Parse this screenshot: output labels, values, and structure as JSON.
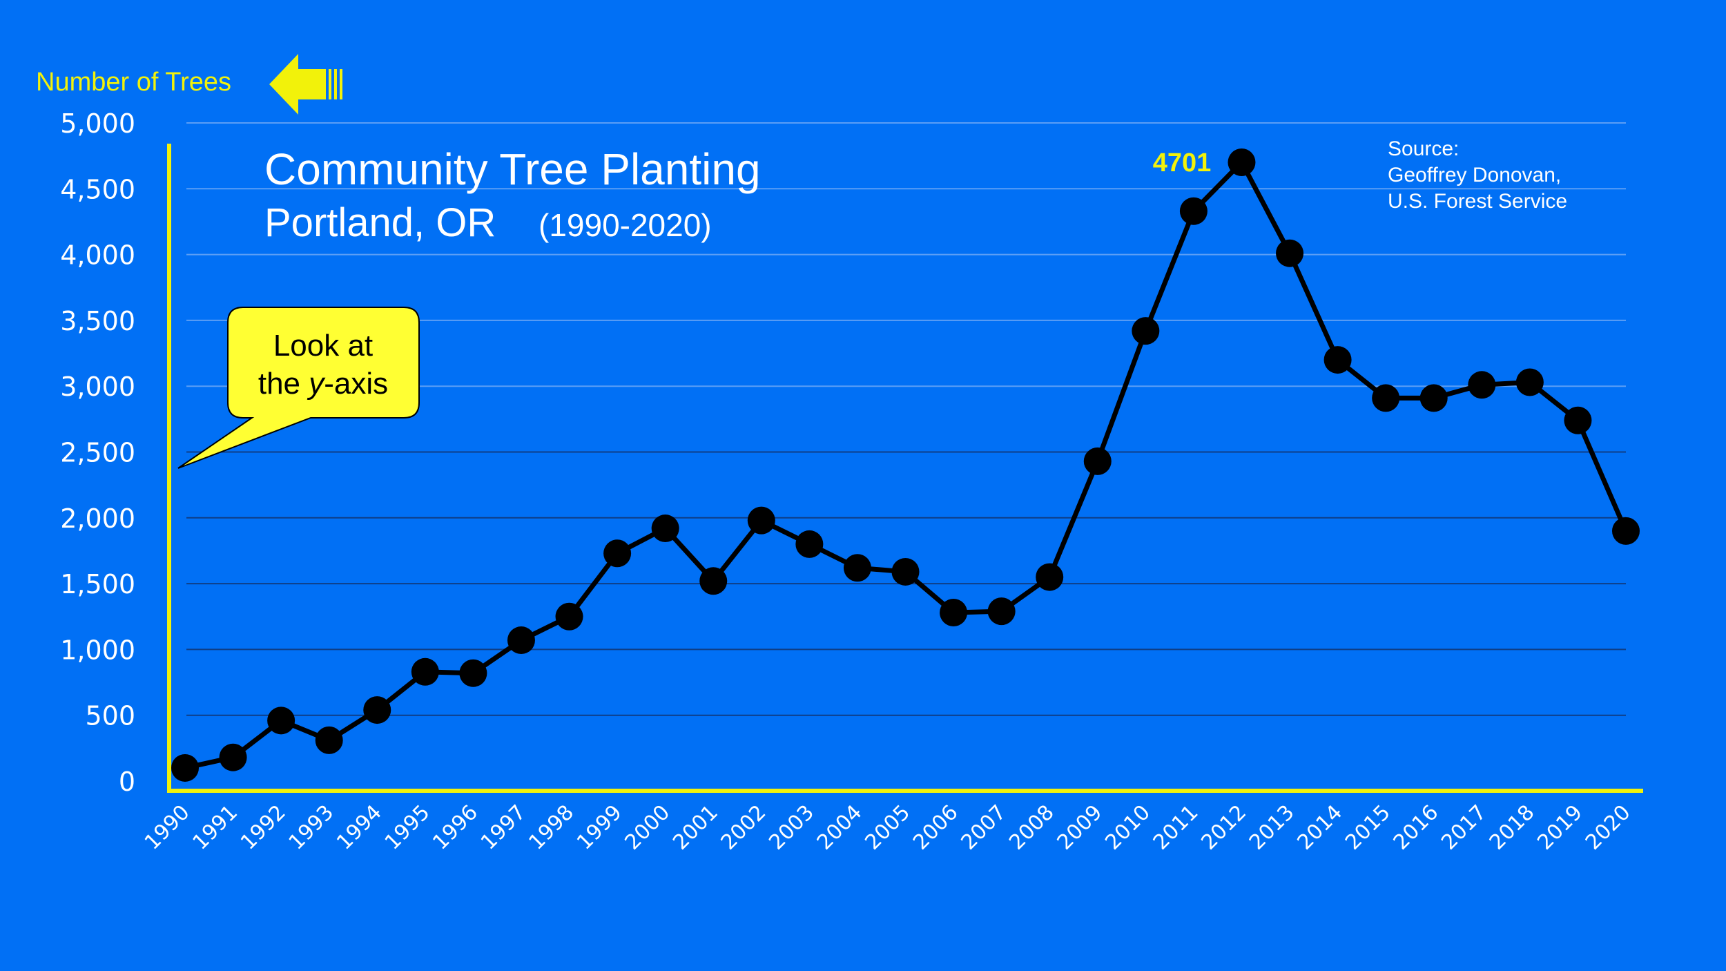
{
  "colors": {
    "background": "#0170F5",
    "axis": "#F2F20A",
    "callout_fill": "#FFFF33",
    "line": "#000000",
    "text": "#FFFFFF",
    "gridline_light": "#5B9EF5",
    "gridline_dark": "#0F3E86"
  },
  "icons": {
    "y_axis_pointer": "arrow-left-icon"
  },
  "y_axis_title": "Number of Trees",
  "callout": {
    "line1": "Look at",
    "line2_prefix": "the ",
    "line2_italic": "y",
    "line2_suffix": "-axis"
  },
  "source": {
    "line1": "Source:",
    "line2": "Geoffrey Donovan,",
    "line3": "U.S. Forest Service"
  },
  "chart_data": {
    "type": "line",
    "title": "Community Tree Planting",
    "subtitle_place": "Portland, OR",
    "subtitle_range": "(1990-2020)",
    "xlabel": "",
    "ylabel": "Number of Trees",
    "ylim": [
      0,
      5000
    ],
    "yticks": [
      0,
      500,
      1000,
      1500,
      2000,
      2500,
      3000,
      3500,
      4000,
      4500,
      5000
    ],
    "ytick_labels": [
      "0",
      "500",
      "1,000",
      "1,500",
      "2,000",
      "2,500",
      "3,000",
      "3,500",
      "4,000",
      "4,500",
      "5,000"
    ],
    "grid": true,
    "legend": "none",
    "x": [
      "1990",
      "1991",
      "1992",
      "1993",
      "1994",
      "1995",
      "1996",
      "1997",
      "1998",
      "1999",
      "2000",
      "2001",
      "2002",
      "2003",
      "2004",
      "2005",
      "2006",
      "2007",
      "2008",
      "2009",
      "2010",
      "2011",
      "2012",
      "2013",
      "2014",
      "2015",
      "2016",
      "2017",
      "2018",
      "2019",
      "2020"
    ],
    "series": [
      {
        "values": [
          100,
          180,
          460,
          310,
          540,
          830,
          820,
          1070,
          1250,
          1730,
          1920,
          1520,
          1980,
          1800,
          1620,
          1590,
          1280,
          1290,
          1550,
          2430,
          3420,
          4330,
          4701,
          4010,
          3200,
          2910,
          2910,
          3010,
          3030,
          2740,
          1900
        ]
      }
    ],
    "annotations": [
      {
        "x": "2012",
        "label": "4701"
      }
    ]
  }
}
